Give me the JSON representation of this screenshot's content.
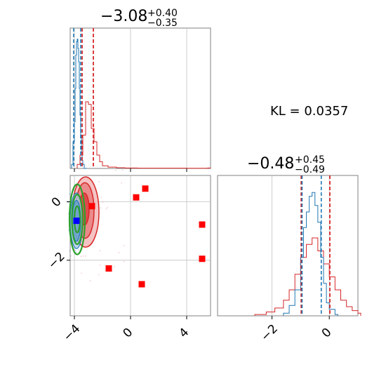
{
  "chart_data": {
    "type": "corner",
    "kl_text": "KL = 0.0357",
    "param1_title": {
      "main": "−3.08",
      "sup": "+0.40",
      "sub": "−0.35"
    },
    "param2_title": {
      "main": "−0.48",
      "sup": "+0.45",
      "sub": "−0.49"
    },
    "colors": {
      "blue": "#1f77b4",
      "red": "#d62728",
      "green": "#2ca02c",
      "square_red": "#ff0000",
      "square_blue": "#0000ff",
      "grid": "#c0c0c0",
      "frame": "#808080"
    },
    "ticks_x1": [
      "−4",
      "0",
      "4"
    ],
    "ticks_y2": [
      "0",
      "−2"
    ],
    "ticks_x2": [
      "−2",
      "0"
    ],
    "x1_range": [
      -4.3,
      5.7
    ],
    "y2_range": [
      -3.9,
      0.9
    ],
    "x2_range": [
      -3.9,
      1.0
    ],
    "hist1_blue": {
      "x": [
        -4.2,
        -4.1,
        -4.0,
        -3.95,
        -3.9,
        -3.85,
        -3.8,
        -3.75,
        -3.7,
        -3.65,
        -3.6,
        -3.55,
        -3.5,
        -3.45,
        -3.4,
        -3.3
      ],
      "h": [
        0.03,
        0.2,
        0.35,
        0.6,
        0.85,
        0.95,
        0.97,
        0.9,
        0.8,
        0.6,
        0.4,
        0.25,
        0.12,
        0.06,
        0.03,
        0.0
      ]
    },
    "hist1_red": {
      "x": [
        -3.8,
        -3.6,
        -3.4,
        -3.2,
        -3.0,
        -2.8,
        -2.6,
        -2.4,
        -2.2,
        -2.0,
        -1.6,
        -1.0,
        -0.4,
        0.5,
        2.0,
        4.0,
        5.5
      ],
      "h": [
        0.03,
        0.1,
        0.25,
        0.5,
        0.48,
        0.3,
        0.2,
        0.1,
        0.05,
        0.02,
        0.01,
        0.005,
        0.003,
        0.002,
        0.002,
        0.001,
        0.003
      ]
    },
    "vlines1": {
      "blue": [
        -4.05,
        -3.55
      ],
      "red": [
        -3.45,
        -2.65
      ]
    },
    "hist2_blue": {
      "x": [
        -1.6,
        -1.4,
        -1.2,
        -1.0,
        -0.9,
        -0.8,
        -0.7,
        -0.6,
        -0.5,
        -0.4,
        -0.3,
        -0.2,
        -0.1,
        0.0,
        0.2
      ],
      "h": [
        0.02,
        0.08,
        0.2,
        0.45,
        0.68,
        0.8,
        0.92,
        0.95,
        0.85,
        0.72,
        0.45,
        0.25,
        0.1,
        0.05,
        0.01
      ]
    },
    "hist2_red": {
      "x": [
        -2.6,
        -2.2,
        -1.9,
        -1.6,
        -1.4,
        -1.2,
        -1.0,
        -0.8,
        -0.6,
        -0.4,
        -0.2,
        0.0,
        0.2,
        0.4,
        0.6,
        0.8,
        1.0
      ],
      "h": [
        0.01,
        0.03,
        0.06,
        0.12,
        0.2,
        0.32,
        0.45,
        0.55,
        0.6,
        0.5,
        0.4,
        0.3,
        0.2,
        0.12,
        0.07,
        0.04,
        0.02
      ]
    },
    "vlines2": {
      "blue": [
        -0.95,
        -0.28
      ],
      "red": [
        -0.98,
        0.02
      ]
    },
    "red_contours": [
      {
        "cx": -3.2,
        "cy": -0.35,
        "rx": 0.95,
        "ry": 1.2
      },
      {
        "cx": -3.25,
        "cy": -0.3,
        "rx": 0.65,
        "ry": 0.95
      },
      {
        "cx": -3.3,
        "cy": -0.25,
        "rx": 0.35,
        "ry": 0.55
      }
    ],
    "blue_contours": [
      {
        "cx": -3.85,
        "cy": -0.65,
        "rx": 0.45,
        "ry": 0.95
      },
      {
        "cx": -3.85,
        "cy": -0.65,
        "rx": 0.3,
        "ry": 0.7
      }
    ],
    "green_contours": [
      {
        "cx": -3.8,
        "cy": -0.6,
        "rx": 0.55,
        "ry": 1.2
      },
      {
        "cx": -3.8,
        "cy": -0.6,
        "rx": 0.38,
        "ry": 0.85
      },
      {
        "cx": -3.8,
        "cy": -0.6,
        "rx": 0.2,
        "ry": 0.45
      }
    ],
    "red_squares": [
      [
        -2.75,
        -0.15
      ],
      [
        0.4,
        0.15
      ],
      [
        1.05,
        0.45
      ],
      [
        5.1,
        -0.78
      ],
      [
        5.1,
        -1.95
      ],
      [
        -1.55,
        -2.28
      ],
      [
        0.8,
        -2.82
      ]
    ],
    "blue_square": [
      -3.85,
      -0.65
    ]
  }
}
